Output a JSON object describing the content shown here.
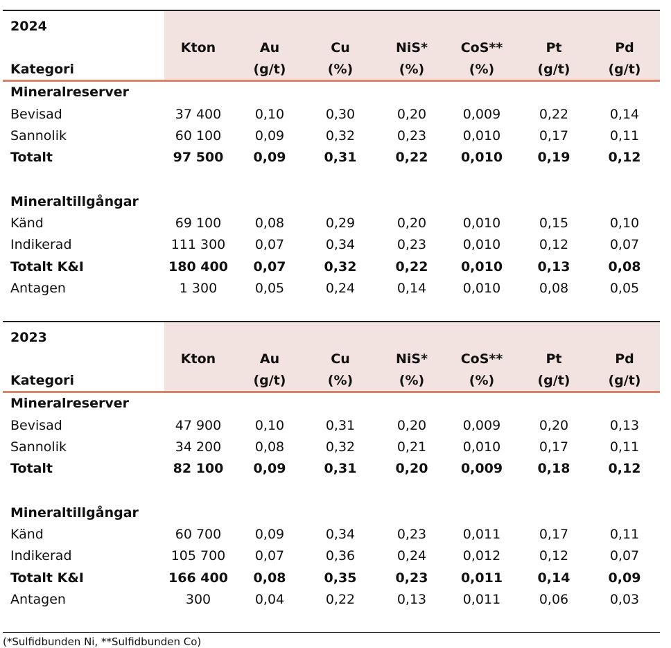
{
  "columns": [
    {
      "name": "Kton",
      "unit": ""
    },
    {
      "name": "Au",
      "unit": "(g/t)"
    },
    {
      "name": "Cu",
      "unit": "(%)"
    },
    {
      "name": "NiS*",
      "unit": "(%)"
    },
    {
      "name": "CoS**",
      "unit": "(%)"
    },
    {
      "name": "Pt",
      "unit": "(g/t)"
    },
    {
      "name": "Pd",
      "unit": "(g/t)"
    }
  ],
  "category_header": "Kategori",
  "tables": [
    {
      "year": "2024",
      "sections": [
        {
          "title": "Mineralreserver",
          "rows": [
            {
              "label": "Bevisad",
              "bold": false,
              "values": [
                "37 400",
                "0,10",
                "0,30",
                "0,20",
                "0,009",
                "0,22",
                "0,14"
              ]
            },
            {
              "label": "Sannolik",
              "bold": false,
              "values": [
                "60 100",
                "0,09",
                "0,32",
                "0,23",
                "0,010",
                "0,17",
                "0,11"
              ]
            },
            {
              "label": "Totalt",
              "bold": true,
              "values": [
                "97 500",
                "0,09",
                "0,31",
                "0,22",
                "0,010",
                "0,19",
                "0,12"
              ]
            }
          ]
        },
        {
          "title": "Mineraltillgångar",
          "rows": [
            {
              "label": "Känd",
              "bold": false,
              "values": [
                "69 100",
                "0,08",
                "0,29",
                "0,20",
                "0,010",
                "0,15",
                "0,10"
              ]
            },
            {
              "label": "Indikerad",
              "bold": false,
              "values": [
                "111 300",
                "0,07",
                "0,34",
                "0,23",
                "0,010",
                "0,12",
                "0,07"
              ]
            },
            {
              "label": "Totalt K&I",
              "bold": true,
              "values": [
                "180 400",
                "0,07",
                "0,32",
                "0,22",
                "0,010",
                "0,13",
                "0,08"
              ]
            },
            {
              "label": "Antagen",
              "bold": false,
              "values": [
                "1 300",
                "0,05",
                "0,24",
                "0,14",
                "0,010",
                "0,08",
                "0,05"
              ]
            }
          ]
        }
      ]
    },
    {
      "year": "2023",
      "sections": [
        {
          "title": "Mineralreserver",
          "rows": [
            {
              "label": "Bevisad",
              "bold": false,
              "values": [
                "47 900",
                "0,10",
                "0,31",
                "0,20",
                "0,009",
                "0,20",
                "0,13"
              ]
            },
            {
              "label": "Sannolik",
              "bold": false,
              "values": [
                "34 200",
                "0,08",
                "0,32",
                "0,21",
                "0,010",
                "0,17",
                "0,11"
              ]
            },
            {
              "label": "Totalt",
              "bold": true,
              "values": [
                "82 100",
                "0,09",
                "0,31",
                "0,20",
                "0,009",
                "0,18",
                "0,12"
              ]
            }
          ]
        },
        {
          "title": "Mineraltillgångar",
          "rows": [
            {
              "label": "Känd",
              "bold": false,
              "values": [
                "60 700",
                "0,09",
                "0,34",
                "0,23",
                "0,011",
                "0,17",
                "0,11"
              ]
            },
            {
              "label": "Indikerad",
              "bold": false,
              "values": [
                "105 700",
                "0,07",
                "0,36",
                "0,24",
                "0,012",
                "0,12",
                "0,07"
              ]
            },
            {
              "label": "Totalt K&I",
              "bold": true,
              "values": [
                "166 400",
                "0,08",
                "0,35",
                "0,23",
                "0,011",
                "0,14",
                "0,09"
              ]
            },
            {
              "label": "Antagen",
              "bold": false,
              "values": [
                "300",
                "0,04",
                "0,22",
                "0,13",
                "0,011",
                "0,06",
                "0,03"
              ]
            }
          ]
        }
      ]
    }
  ],
  "footnote": "(*Sulfidbunden Ni, **Sulfidbunden Co)",
  "colors": {
    "header_bg": "#f3e3e0",
    "rule": "#d9826a",
    "text": "#111111"
  }
}
